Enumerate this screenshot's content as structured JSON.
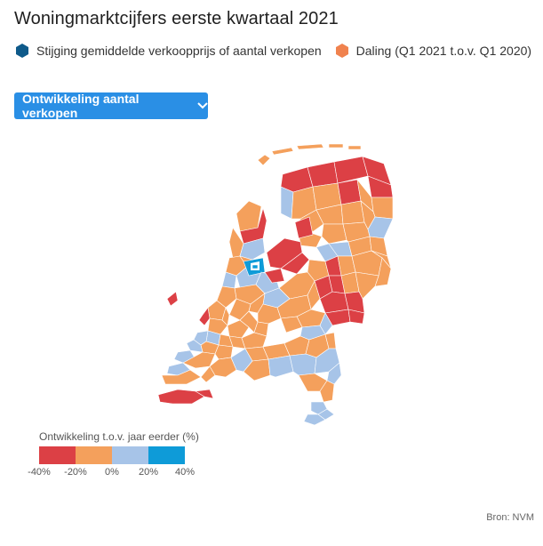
{
  "title": "Woningmarktcijfers eerste kwartaal 2021",
  "legend": [
    {
      "label": "Stijging gemiddelde verkoopprijs of aantal verkopen",
      "color": "#0e5a8a",
      "icon": "hexagon-icon"
    },
    {
      "label": "Daling (Q1 2021 t.o.v. Q1 2020)",
      "color": "#f0824e",
      "icon": "hexagon-icon"
    }
  ],
  "dropdown": {
    "label": "Ontwikkeling aantal verkopen",
    "icon": "chevron-down-icon"
  },
  "colors": {
    "strong_decline": "#dc4045",
    "decline": "#f4a05c",
    "increase": "#a7c4e8",
    "strong_increase": "#0e9bd8",
    "button": "#2a8fe5"
  },
  "scale": {
    "title": "Ontwikkeling t.o.v. jaar eerder (%)",
    "ticks": [
      "-40%",
      "-20%",
      "0%",
      "20%",
      "40%"
    ],
    "bins": [
      {
        "from": -40,
        "to": -20,
        "color": "#dc4045"
      },
      {
        "from": -20,
        "to": 0,
        "color": "#f4a05c"
      },
      {
        "from": 0,
        "to": 20,
        "color": "#a7c4e8"
      },
      {
        "from": 20,
        "to": 40,
        "color": "#0e9bd8"
      }
    ]
  },
  "source": "Bron: NVM"
}
